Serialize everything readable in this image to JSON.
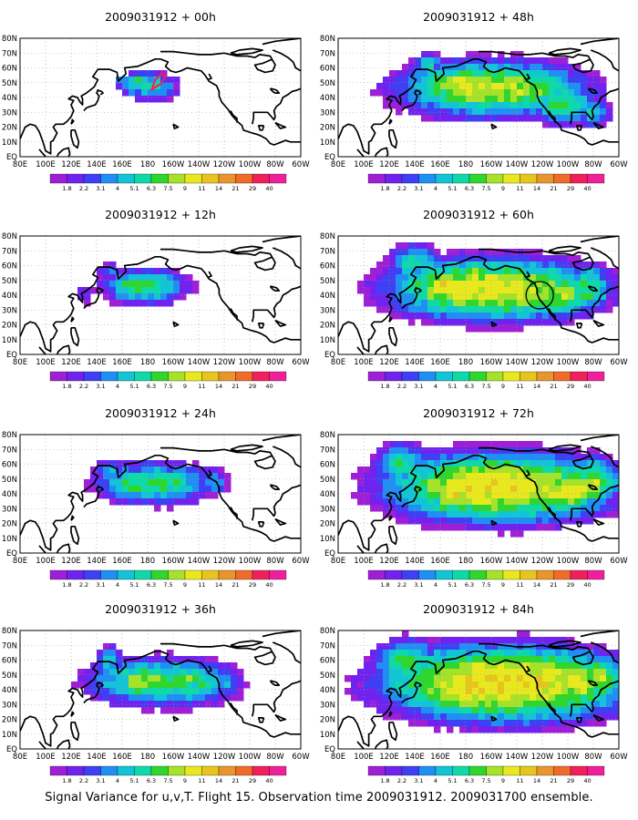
{
  "chart_data": {
    "type": "heatmap",
    "colorbar": {
      "levels": [
        "1.8",
        "2.2",
        "3.1",
        "4",
        "5.1",
        "6.3",
        "7.5",
        "9",
        "11",
        "14",
        "21",
        "29",
        "40"
      ],
      "colors": [
        "#9f1fd6",
        "#7023ee",
        "#3f3ff3",
        "#1f8ff3",
        "#12c4d6",
        "#10d9a8",
        "#2ed62e",
        "#a6e22a",
        "#e8e81f",
        "#e8c41f",
        "#e8952e",
        "#f06a2a",
        "#f0205a",
        "#f0209a"
      ]
    },
    "x_ticks": [
      "80E",
      "100E",
      "120E",
      "140E",
      "160E",
      "180",
      "160W",
      "140W",
      "120W",
      "100W",
      "80W",
      "60W"
    ],
    "y_ticks": [
      "EQ",
      "10N",
      "20N",
      "30N",
      "40N",
      "50N",
      "60N",
      "70N",
      "80N"
    ],
    "panels": [
      {
        "title": "2009031912 + 00h",
        "lead_hours": 0
      },
      {
        "title": "2009031912 + 48h",
        "lead_hours": 48
      },
      {
        "title": "2009031912 + 12h",
        "lead_hours": 12
      },
      {
        "title": "2009031912 + 60h",
        "lead_hours": 60
      },
      {
        "title": "2009031912 + 24h",
        "lead_hours": 24
      },
      {
        "title": "2009031912 + 72h",
        "lead_hours": 72
      },
      {
        "title": "2009031912 + 36h",
        "lead_hours": 36
      },
      {
        "title": "2009031912 + 84h",
        "lead_hours": 84
      }
    ]
  },
  "caption": "Signal Variance for u,v,T. Flight 15. Observation time 2009031912. 2009031700 ensemble."
}
